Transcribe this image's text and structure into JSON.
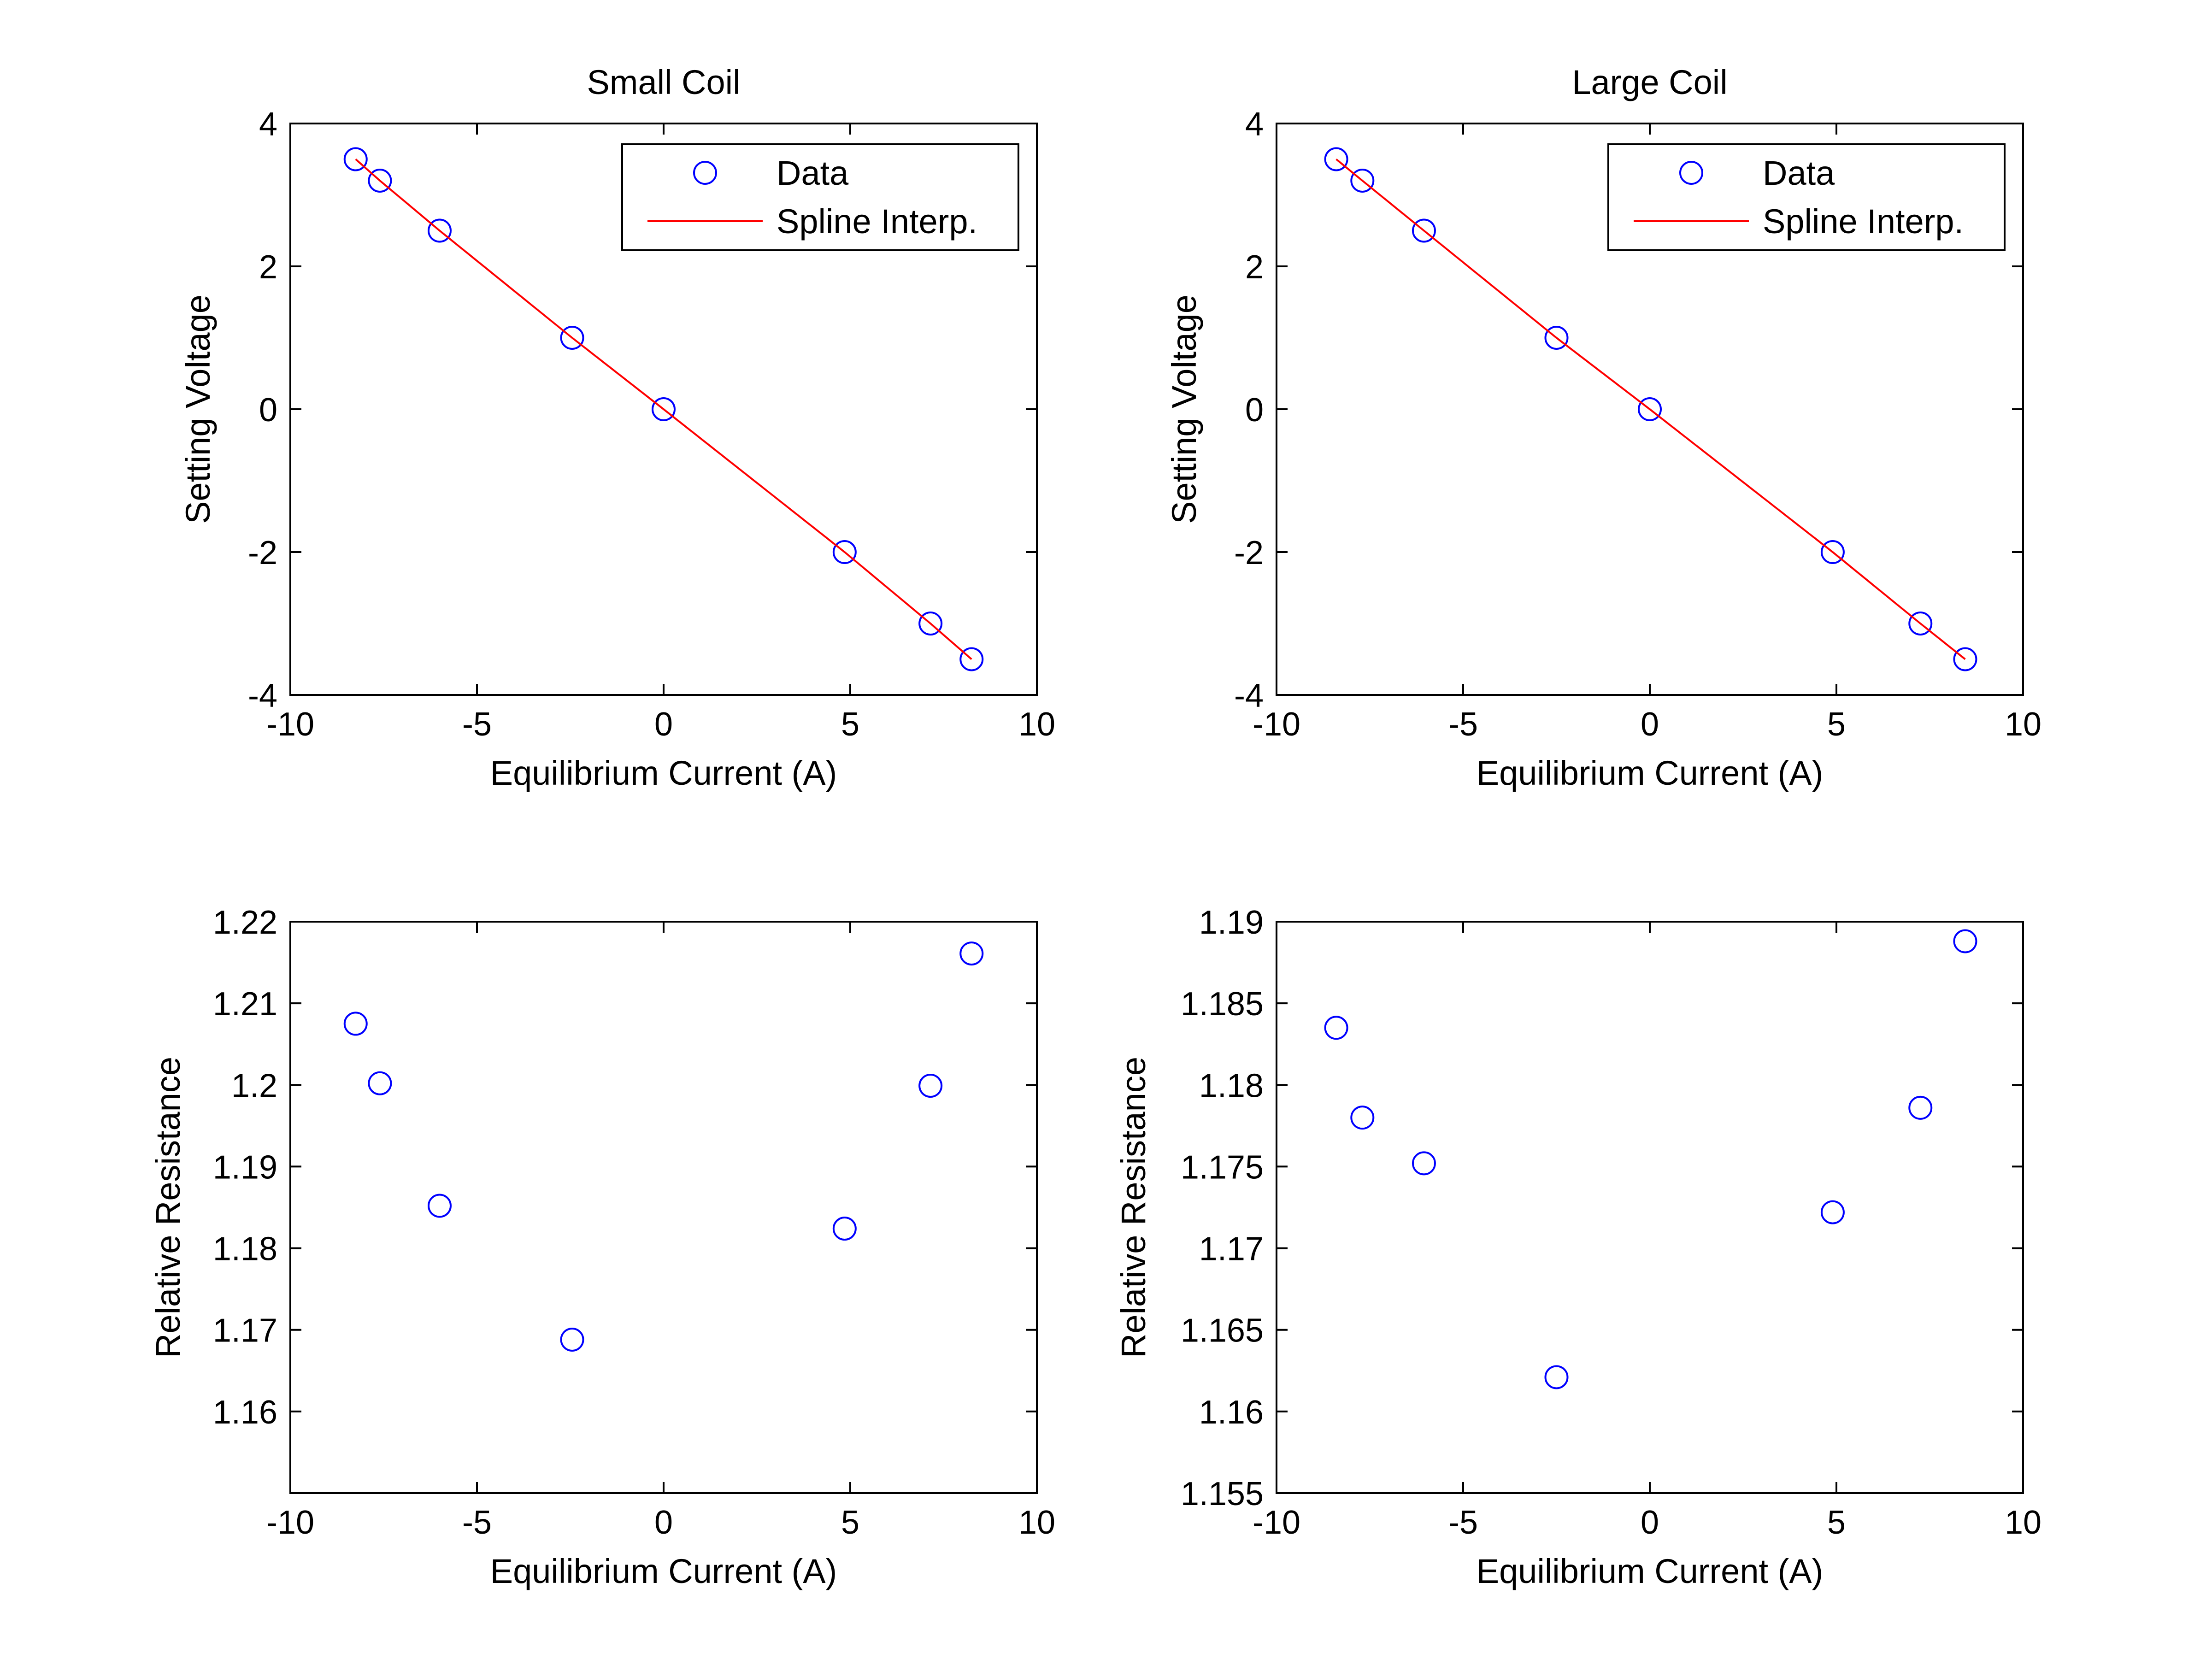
{
  "colors": {
    "marker": "#0000ff",
    "line": "#ff0000",
    "axes": "#000000",
    "background": "#ffffff"
  },
  "chart_data": [
    {
      "id": "small-coil-voltage",
      "type": "scatter",
      "title": "Small Coil",
      "xlabel": "Equilibrium Current (A)",
      "ylabel": "Setting Voltage",
      "xlim": [
        -10,
        10
      ],
      "ylim": [
        -4,
        4
      ],
      "xticks": [
        -10,
        -5,
        0,
        5,
        10
      ],
      "yticks": [
        -4,
        -2,
        0,
        2,
        4
      ],
      "xtick_labels": [
        "-10",
        "-5",
        "0",
        "5",
        "10"
      ],
      "ytick_labels": [
        "-4",
        "-2",
        "0",
        "2",
        "4"
      ],
      "grid": false,
      "legend": {
        "position": "top-right",
        "entries": [
          "Data",
          "Spline Interp."
        ]
      },
      "series": [
        {
          "name": "Data",
          "kind": "markers",
          "marker": "circle",
          "color": "#0000ff",
          "x": [
            -8.25,
            -7.6,
            -6.0,
            -2.45,
            0.0,
            4.85,
            7.15,
            8.25
          ],
          "y": [
            3.5,
            3.2,
            2.5,
            1.0,
            0.0,
            -2.0,
            -3.0,
            -3.5
          ]
        },
        {
          "name": "Spline Interp.",
          "kind": "line",
          "color": "#ff0000",
          "x": [
            -8.25,
            -7.6,
            -6.0,
            -2.45,
            0.0,
            4.85,
            7.15,
            8.25
          ],
          "y": [
            3.5,
            3.2,
            2.5,
            1.0,
            0.0,
            -2.0,
            -3.0,
            -3.5
          ]
        }
      ]
    },
    {
      "id": "large-coil-voltage",
      "type": "scatter",
      "title": "Large Coil",
      "xlabel": "Equilibrium Current (A)",
      "ylabel": "Setting Voltage",
      "xlim": [
        -10,
        10
      ],
      "ylim": [
        -4,
        4
      ],
      "xticks": [
        -10,
        -5,
        0,
        5,
        10
      ],
      "yticks": [
        -4,
        -2,
        0,
        2,
        4
      ],
      "xtick_labels": [
        "-10",
        "-5",
        "0",
        "5",
        "10"
      ],
      "ytick_labels": [
        "-4",
        "-2",
        "0",
        "2",
        "4"
      ],
      "grid": false,
      "legend": {
        "position": "top-right",
        "entries": [
          "Data",
          "Spline Interp."
        ]
      },
      "series": [
        {
          "name": "Data",
          "kind": "markers",
          "marker": "circle",
          "color": "#0000ff",
          "x": [
            -8.4,
            -7.7,
            -6.05,
            -2.5,
            0.0,
            4.9,
            7.25,
            8.45
          ],
          "y": [
            3.5,
            3.2,
            2.5,
            1.0,
            0.0,
            -2.0,
            -3.0,
            -3.5
          ]
        },
        {
          "name": "Spline Interp.",
          "kind": "line",
          "color": "#ff0000",
          "x": [
            -8.4,
            -7.7,
            -6.05,
            -2.5,
            0.0,
            4.9,
            7.25,
            8.45
          ],
          "y": [
            3.5,
            3.2,
            2.5,
            1.0,
            0.0,
            -2.0,
            -3.0,
            -3.5
          ]
        }
      ]
    },
    {
      "id": "small-coil-resistance",
      "type": "scatter",
      "title": "",
      "xlabel": "Equilibrium Current (A)",
      "ylabel": "Relative Resistance",
      "xlim": [
        -10,
        10
      ],
      "ylim": [
        1.15,
        1.22
      ],
      "xticks": [
        -10,
        -5,
        0,
        5,
        10
      ],
      "yticks": [
        1.16,
        1.17,
        1.18,
        1.19,
        1.2,
        1.21,
        1.22
      ],
      "xtick_labels": [
        "-10",
        "-5",
        "0",
        "5",
        "10"
      ],
      "ytick_labels": [
        "1.16",
        "1.17",
        "1.18",
        "1.19",
        "1.2",
        "1.21",
        "1.22"
      ],
      "grid": false,
      "series": [
        {
          "kind": "markers",
          "marker": "circle",
          "color": "#0000ff",
          "x": [
            -8.25,
            -7.6,
            -6.0,
            -2.45,
            4.85,
            7.15,
            8.25
          ],
          "y": [
            1.2075,
            1.2002,
            1.1852,
            1.1688,
            1.1824,
            1.1999,
            1.2161
          ]
        }
      ]
    },
    {
      "id": "large-coil-resistance",
      "type": "scatter",
      "title": "",
      "xlabel": "Equilibrium Current (A)",
      "ylabel": "Relative Resistance",
      "xlim": [
        -10,
        10
      ],
      "ylim": [
        1.155,
        1.19
      ],
      "xticks": [
        -10,
        -5,
        0,
        5,
        10
      ],
      "yticks": [
        1.155,
        1.16,
        1.165,
        1.17,
        1.175,
        1.18,
        1.185,
        1.19
      ],
      "xtick_labels": [
        "-10",
        "-5",
        "0",
        "5",
        "10"
      ],
      "ytick_labels": [
        "1.155",
        "1.16",
        "1.165",
        "1.17",
        "1.175",
        "1.18",
        "1.185",
        "1.19"
      ],
      "grid": false,
      "series": [
        {
          "kind": "markers",
          "marker": "circle",
          "color": "#0000ff",
          "x": [
            -8.4,
            -7.7,
            -6.05,
            -2.5,
            4.9,
            7.25,
            8.45
          ],
          "y": [
            1.1835,
            1.178,
            1.1752,
            1.1621,
            1.1722,
            1.1786,
            1.1888
          ]
        }
      ]
    }
  ]
}
